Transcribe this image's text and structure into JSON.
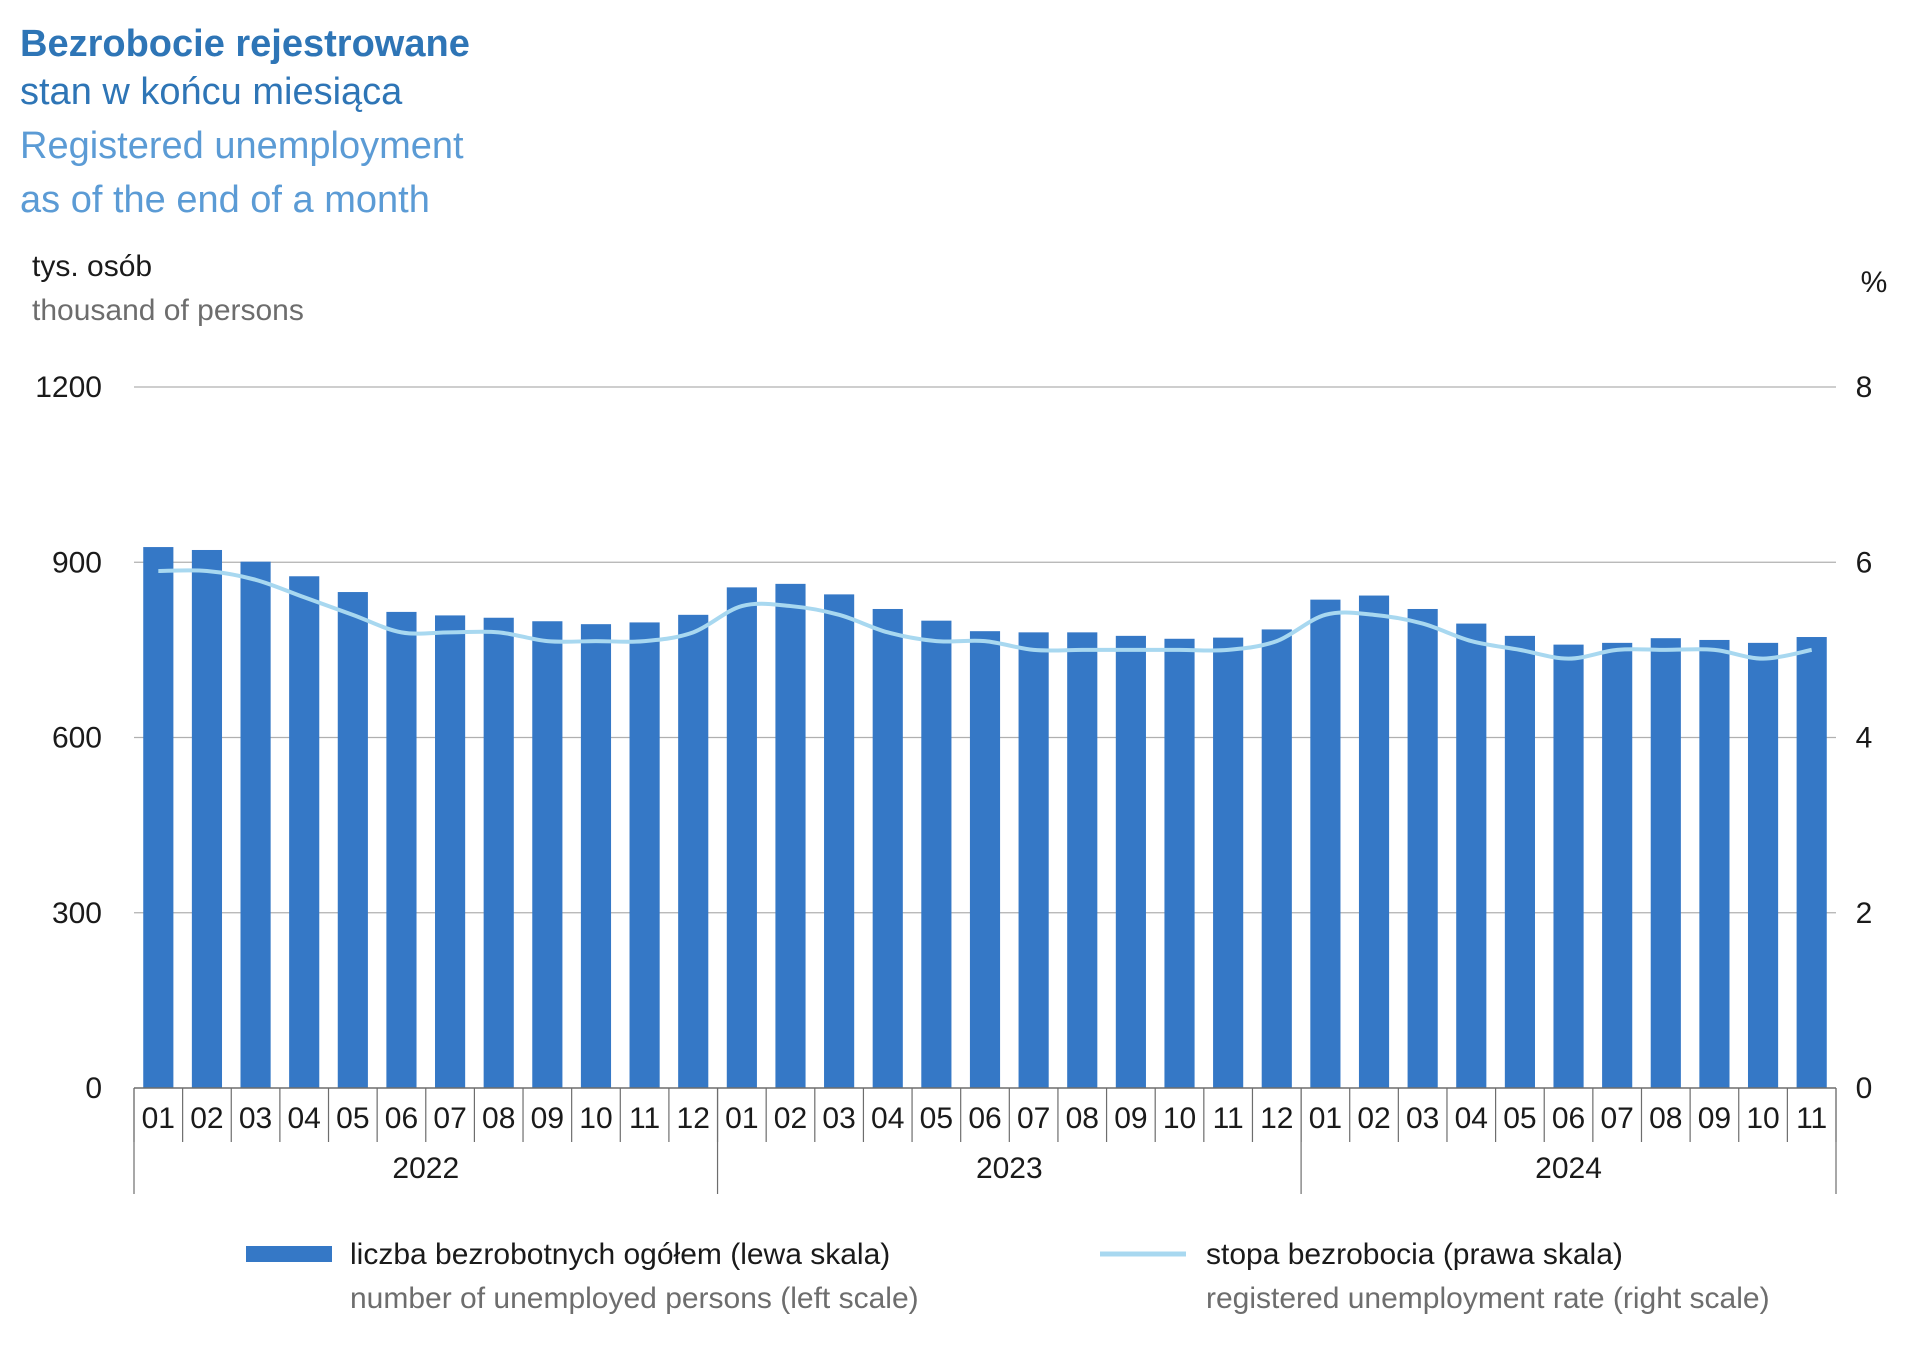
{
  "title": {
    "pl_main": "Bezrobocie rejestrowane",
    "pl_sub": "stan w końcu miesiąca",
    "en_main": "Registered unemployment",
    "en_sub": "as of the end of a month"
  },
  "left_unit": {
    "pl": "tys. osób",
    "en": "thousand of persons"
  },
  "right_unit": "%",
  "legend": {
    "bars_pl": "liczba bezrobotnych ogółem (lewa skala)",
    "bars_en": "number of unemployed persons (left scale)",
    "line_pl": "stopa bezrobocia (prawa skala)",
    "line_en": "registered unemployment rate (right scale)"
  },
  "colors": {
    "bar": "#3578c6",
    "line": "#a8d8f0",
    "title_dark": "#2e75b6",
    "title_light": "#5b9bd5",
    "grid": "#b0b0b0",
    "text": "#1a1a1a",
    "text_gray": "#6d6d6d"
  },
  "chart_data": {
    "type": "bar",
    "categories": [
      "01",
      "02",
      "03",
      "04",
      "05",
      "06",
      "07",
      "08",
      "09",
      "10",
      "11",
      "12",
      "01",
      "02",
      "03",
      "04",
      "05",
      "06",
      "07",
      "08",
      "09",
      "10",
      "11",
      "12",
      "01",
      "02",
      "03",
      "04",
      "05",
      "06",
      "07",
      "08",
      "09",
      "10",
      "11"
    ],
    "years": [
      {
        "label": "2022",
        "months": 12
      },
      {
        "label": "2023",
        "months": 12
      },
      {
        "label": "2024",
        "months": 11
      }
    ],
    "series": [
      {
        "name": "liczba bezrobotnych ogółem (lewa skala)",
        "axis": "left",
        "type": "bar",
        "values": [
          926,
          921,
          901,
          876,
          849,
          815,
          809,
          805,
          799,
          794,
          797,
          810,
          857,
          863,
          845,
          820,
          800,
          782,
          780,
          780,
          774,
          769,
          771,
          785,
          836,
          843,
          820,
          795,
          774,
          759,
          762,
          770,
          767,
          762,
          772
        ]
      },
      {
        "name": "stopa bezrobocia (prawa skala)",
        "axis": "right",
        "type": "line",
        "values": [
          5.9,
          5.9,
          5.8,
          5.6,
          5.4,
          5.2,
          5.2,
          5.2,
          5.1,
          5.1,
          5.1,
          5.2,
          5.5,
          5.5,
          5.4,
          5.2,
          5.1,
          5.1,
          5.0,
          5.0,
          5.0,
          5.0,
          5.0,
          5.1,
          5.4,
          5.4,
          5.3,
          5.1,
          5.0,
          4.9,
          5.0,
          5.0,
          5.0,
          4.9,
          5.0
        ]
      }
    ],
    "y_left": {
      "min": 0,
      "max": 1200,
      "ticks": [
        0,
        300,
        600,
        900,
        1200
      ]
    },
    "y_right": {
      "min": 0,
      "max": 8,
      "ticks": [
        0,
        2,
        4,
        6,
        8
      ]
    },
    "grid": true,
    "legend_position": "bottom"
  }
}
